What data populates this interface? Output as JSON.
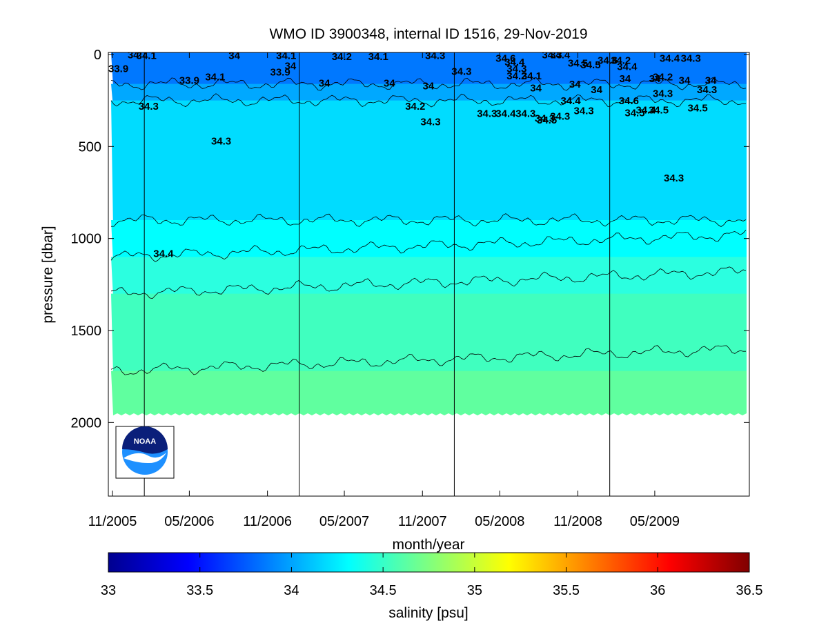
{
  "chart_data": {
    "type": "heatmap",
    "title": "WMO ID 3900348, internal ID 1516, 29-Nov-2019",
    "xlabel": "month/year",
    "ylabel": "pressure [dbar]",
    "x_ticks": [
      "11/2005",
      "05/2006",
      "11/2006",
      "05/2007",
      "11/2007",
      "05/2008",
      "11/2008",
      "05/2009"
    ],
    "y_ticks": [
      0,
      500,
      1000,
      1500,
      2000
    ],
    "ylim": [
      0,
      2400
    ],
    "y_reversed": true,
    "xlim": [
      "2005-11-01",
      "2009-11-30"
    ],
    "vertical_markers": [
      "2006-01-15",
      "2007-01-15",
      "2008-01-15",
      "2009-01-15"
    ],
    "colorbar": {
      "label": "salinity [psu]",
      "ticks": [
        33,
        33.5,
        34,
        34.5,
        35,
        35.5,
        36,
        36.5
      ],
      "range": [
        33,
        36.5
      ],
      "colormap": "jet"
    },
    "bands": [
      {
        "salinity_range": [
          33.8,
          34.0
        ],
        "pressure_range": [
          0,
          160
        ],
        "color": "#0078ff"
      },
      {
        "salinity_range": [
          34.0,
          34.2
        ],
        "pressure_range": [
          160,
          250
        ],
        "color": "#00a8ff"
      },
      {
        "salinity_range": [
          34.2,
          34.3
        ],
        "pressure_range": [
          250,
          900
        ],
        "color": "#00dcff"
      },
      {
        "salinity_range": [
          34.3,
          34.4
        ],
        "pressure_range": [
          900,
          1100
        ],
        "color": "#00ffff"
      },
      {
        "salinity_range": [
          34.4,
          34.5
        ],
        "pressure_range": [
          1100,
          1300
        ],
        "color": "#2bffe0"
      },
      {
        "salinity_range": [
          34.5,
          34.6
        ],
        "pressure_range": [
          1300,
          1720
        ],
        "color": "#40ffbf"
      },
      {
        "salinity_range": [
          34.6,
          34.7
        ],
        "pressure_range": [
          1720,
          1950
        ],
        "color": "#60ff9f"
      }
    ],
    "contour_labels": [
      {
        "text": "33.9",
        "date": "2005-11-15",
        "pressure": 95
      },
      {
        "text": "34",
        "date": "2005-12-20",
        "pressure": 20
      },
      {
        "text": "34.1",
        "date": "2006-01-20",
        "pressure": 25
      },
      {
        "text": "34.3",
        "date": "2006-01-25",
        "pressure": 300
      },
      {
        "text": "33.9",
        "date": "2006-05-01",
        "pressure": 160
      },
      {
        "text": "34.1",
        "date": "2006-07-01",
        "pressure": 140
      },
      {
        "text": "34.3",
        "date": "2006-07-15",
        "pressure": 490
      },
      {
        "text": "34",
        "date": "2006-08-15",
        "pressure": 25
      },
      {
        "text": "34.4",
        "date": "2006-03-01",
        "pressure": 1100
      },
      {
        "text": "34.1",
        "date": "2006-12-15",
        "pressure": 25
      },
      {
        "text": "33.9",
        "date": "2006-12-01",
        "pressure": 115
      },
      {
        "text": "34",
        "date": "2006-12-25",
        "pressure": 80
      },
      {
        "text": "34",
        "date": "2007-03-15",
        "pressure": 175
      },
      {
        "text": "34.2",
        "date": "2007-04-25",
        "pressure": 30
      },
      {
        "text": "34.1",
        "date": "2007-07-20",
        "pressure": 30
      },
      {
        "text": "34",
        "date": "2007-08-15",
        "pressure": 175
      },
      {
        "text": "34.2",
        "date": "2007-10-15",
        "pressure": 300
      },
      {
        "text": "34",
        "date": "2007-11-15",
        "pressure": 190
      },
      {
        "text": "34.3",
        "date": "2007-11-20",
        "pressure": 385
      },
      {
        "text": "34.3",
        "date": "2007-12-01",
        "pressure": 25
      },
      {
        "text": "34.3",
        "date": "2008-02-01",
        "pressure": 110
      },
      {
        "text": "34.3",
        "date": "2008-04-01",
        "pressure": 340
      },
      {
        "text": "34.4",
        "date": "2008-05-15",
        "pressure": 340
      },
      {
        "text": "34.6",
        "date": "2008-05-15",
        "pressure": 40
      },
      {
        "text": "34.4",
        "date": "2008-06-05",
        "pressure": 60
      },
      {
        "text": "34.3",
        "date": "2008-06-10",
        "pressure": 95
      },
      {
        "text": "34.2",
        "date": "2008-06-10",
        "pressure": 135
      },
      {
        "text": "34.1",
        "date": "2008-07-15",
        "pressure": 135
      },
      {
        "text": "34",
        "date": "2008-07-25",
        "pressure": 200
      },
      {
        "text": "34.3",
        "date": "2008-07-01",
        "pressure": 340
      },
      {
        "text": "34.3",
        "date": "2008-08-15",
        "pressure": 365
      },
      {
        "text": "34.5",
        "date": "2008-08-20",
        "pressure": 375
      },
      {
        "text": "34.3",
        "date": "2008-09-01",
        "pressure": 20
      },
      {
        "text": "34.4",
        "date": "2008-09-20",
        "pressure": 20
      },
      {
        "text": "34.3",
        "date": "2008-09-20",
        "pressure": 355
      },
      {
        "text": "34.4",
        "date": "2008-10-15",
        "pressure": 270
      },
      {
        "text": "34",
        "date": "2008-10-25",
        "pressure": 180
      },
      {
        "text": "34.5",
        "date": "2008-11-01",
        "pressure": 65
      },
      {
        "text": "34.3",
        "date": "2008-11-15",
        "pressure": 325
      },
      {
        "text": "34.5",
        "date": "2008-12-01",
        "pressure": 75
      },
      {
        "text": "34",
        "date": "2008-12-15",
        "pressure": 210
      },
      {
        "text": "34.6",
        "date": "2009-01-10",
        "pressure": 50
      },
      {
        "text": "34.2",
        "date": "2009-02-10",
        "pressure": 50
      },
      {
        "text": "34.4",
        "date": "2009-02-25",
        "pressure": 85
      },
      {
        "text": "34",
        "date": "2009-02-20",
        "pressure": 150
      },
      {
        "text": "34.6",
        "date": "2009-03-01",
        "pressure": 270
      },
      {
        "text": "34.5",
        "date": "2009-03-15",
        "pressure": 335
      },
      {
        "text": "34.4",
        "date": "2009-04-10",
        "pressure": 320
      },
      {
        "text": "34.5",
        "date": "2009-05-10",
        "pressure": 320
      },
      {
        "text": "34",
        "date": "2009-05-01",
        "pressure": 150
      },
      {
        "text": "34.2",
        "date": "2009-05-20",
        "pressure": 140
      },
      {
        "text": "34.3",
        "date": "2009-05-20",
        "pressure": 230
      },
      {
        "text": "34.4",
        "date": "2009-06-05",
        "pressure": 40
      },
      {
        "text": "34",
        "date": "2009-07-10",
        "pressure": 160
      },
      {
        "text": "34.3",
        "date": "2009-07-25",
        "pressure": 40
      },
      {
        "text": "34.5",
        "date": "2009-08-10",
        "pressure": 310
      },
      {
        "text": "34",
        "date": "2009-09-10",
        "pressure": 160
      },
      {
        "text": "34.3",
        "date": "2009-09-01",
        "pressure": 210
      },
      {
        "text": "34.3",
        "date": "2009-06-15",
        "pressure": 690
      }
    ]
  }
}
